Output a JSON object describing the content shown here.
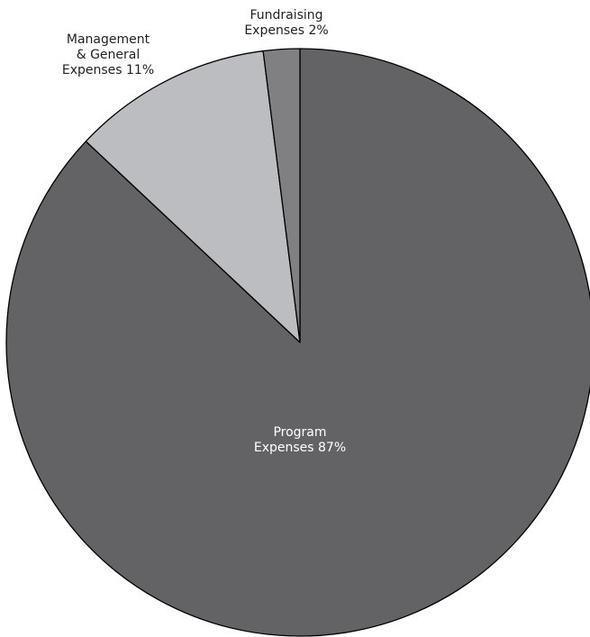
{
  "chart_data": {
    "type": "pie",
    "title": "",
    "slices": [
      {
        "name": "Program Expenses",
        "value": 87,
        "label_lines": [
          "Program",
          "Expenses 87%"
        ],
        "color": "#636365",
        "label_color": "#ffffff"
      },
      {
        "name": "Management & General Expenses",
        "value": 11,
        "label_lines": [
          "Management",
          "& General",
          "Expenses 11%"
        ],
        "color": "#bcbdc0",
        "label_color": "#231f20"
      },
      {
        "name": "Fundraising Expenses",
        "value": 2,
        "label_lines": [
          "Fundraising",
          "Expenses 2%"
        ],
        "color": "#808083",
        "label_color": "#231f20"
      }
    ],
    "start_angle": "12 o'clock",
    "direction": "clockwise",
    "legend": "none"
  }
}
